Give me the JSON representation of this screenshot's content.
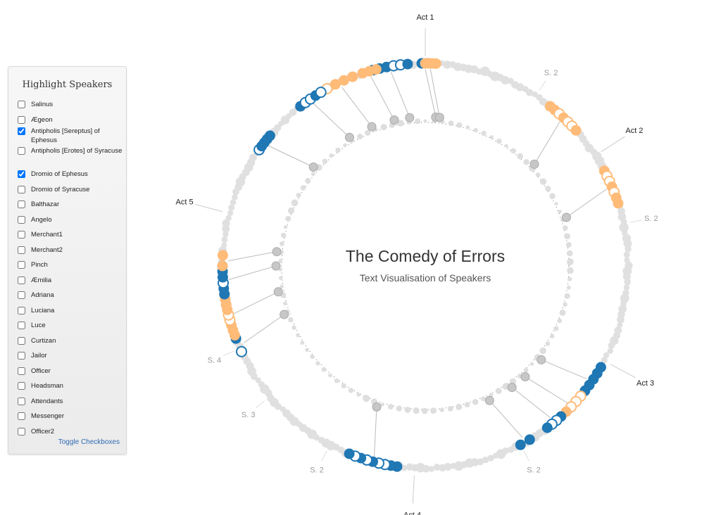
{
  "panel": {
    "title": "Highlight Speakers",
    "toggle_label": "Toggle Checkboxes",
    "speakers": [
      {
        "label": "Salinus",
        "checked": false
      },
      {
        "label": "Ægeon",
        "checked": false
      },
      {
        "label": "Antipholis [Sereptus] of Ephesus",
        "checked": true
      },
      {
        "label": "Antipholis [Erotes] of Syracuse",
        "checked": false
      },
      {
        "label": "Dromio of Ephesus",
        "checked": true
      },
      {
        "label": "Dromio of Syracuse",
        "checked": false
      },
      {
        "label": "Balthazar",
        "checked": false
      },
      {
        "label": "Angelo",
        "checked": false
      },
      {
        "label": "Merchant1",
        "checked": false
      },
      {
        "label": "Merchant2",
        "checked": false
      },
      {
        "label": "Pinch",
        "checked": false
      },
      {
        "label": "Æmilia",
        "checked": false
      },
      {
        "label": "Adriana",
        "checked": false
      },
      {
        "label": "Luciana",
        "checked": false
      },
      {
        "label": "Luce",
        "checked": false
      },
      {
        "label": "Curtizan",
        "checked": false
      },
      {
        "label": "Jailor",
        "checked": false
      },
      {
        "label": "Officer",
        "checked": false
      },
      {
        "label": "Headsman",
        "checked": false
      },
      {
        "label": "Attendants",
        "checked": false
      },
      {
        "label": "Messenger",
        "checked": false
      },
      {
        "label": "Officer2",
        "checked": false
      }
    ]
  },
  "chart_data": {
    "type": "radial-timeline",
    "title": "The Comedy of Errors",
    "subtitle": "Text Visualisation of Speakers",
    "colors": {
      "antipholis_sereptus_of_ephesus": "#1f77b4",
      "dromio_of_ephesus": "#ffbb78",
      "other_speech": "#e0e0e0",
      "stage_entry": "#c7c7c7",
      "label": "#222222",
      "scene_label": "#999999"
    },
    "acts": [
      {
        "label": "Act 1",
        "angle_deg": 0
      },
      {
        "label": "Act 2",
        "angle_deg": 57
      },
      {
        "label": "Act 3",
        "angle_deg": 118
      },
      {
        "label": "Act 4",
        "angle_deg": 183
      },
      {
        "label": "Act 5",
        "angle_deg": 285
      }
    ],
    "scenes": [
      {
        "label": "S. 2",
        "angle_deg": 33
      },
      {
        "label": "S. 2",
        "angle_deg": 78
      },
      {
        "label": "S. 2",
        "angle_deg": 152
      },
      {
        "label": "S. 2",
        "angle_deg": 208
      },
      {
        "label": "S. 3",
        "angle_deg": 230
      },
      {
        "label": "S. 4",
        "angle_deg": 246
      }
    ],
    "highlight_runs": [
      {
        "speaker": "Antipholis [Sereptus] of Ephesus",
        "from_deg": -1,
        "to_deg": 1,
        "count": 2
      },
      {
        "speaker": "Dromio of Ephesus",
        "from_deg": 0,
        "to_deg": 3,
        "count": 4
      },
      {
        "speaker": "Antipholis [Sereptus] of Ephesus",
        "from_deg": -15,
        "to_deg": -5,
        "count": 6
      },
      {
        "speaker": "Dromio of Ephesus",
        "from_deg": -18,
        "to_deg": -14,
        "count": 3
      },
      {
        "speaker": "Dromio of Ephesus",
        "from_deg": -29,
        "to_deg": -21,
        "count": 4
      },
      {
        "speaker": "Antipholis [Sereptus] of Ephesus",
        "from_deg": -38,
        "to_deg": -31,
        "count": 5
      },
      {
        "speaker": "Antipholis [Sereptus] of Ephesus",
        "from_deg": -55,
        "to_deg": -50,
        "count": 5
      },
      {
        "speaker": "Dromio of Ephesus",
        "from_deg": 38,
        "to_deg": 48,
        "count": 7
      },
      {
        "speaker": "Dromio of Ephesus",
        "from_deg": 62,
        "to_deg": 72,
        "count": 7
      },
      {
        "speaker": "Antipholis [Sereptus] of Ephesus",
        "from_deg": 120,
        "to_deg": 130,
        "count": 6
      },
      {
        "speaker": "Dromio of Ephesus",
        "from_deg": 130,
        "to_deg": 138,
        "count": 5
      },
      {
        "speaker": "Antipholis [Sereptus] of Ephesus",
        "from_deg": 138,
        "to_deg": 143,
        "count": 4
      },
      {
        "speaker": "Antipholis [Sereptus] of Ephesus",
        "from_deg": 149,
        "to_deg": 152,
        "count": 2
      },
      {
        "speaker": "Antipholis [Sereptus] of Ephesus",
        "from_deg": 188,
        "to_deg": 202,
        "count": 9
      },
      {
        "speaker": "Antipholis [Sereptus] of Ephesus",
        "from_deg": 245,
        "to_deg": 249,
        "count": 2
      },
      {
        "speaker": "Dromio of Ephesus",
        "from_deg": 250,
        "to_deg": 262,
        "count": 9
      },
      {
        "speaker": "Antipholis [Sereptus] of Ephesus",
        "from_deg": 262,
        "to_deg": 270,
        "count": 6
      },
      {
        "speaker": "Dromio of Ephesus",
        "from_deg": 270,
        "to_deg": 273,
        "count": 2
      }
    ]
  }
}
